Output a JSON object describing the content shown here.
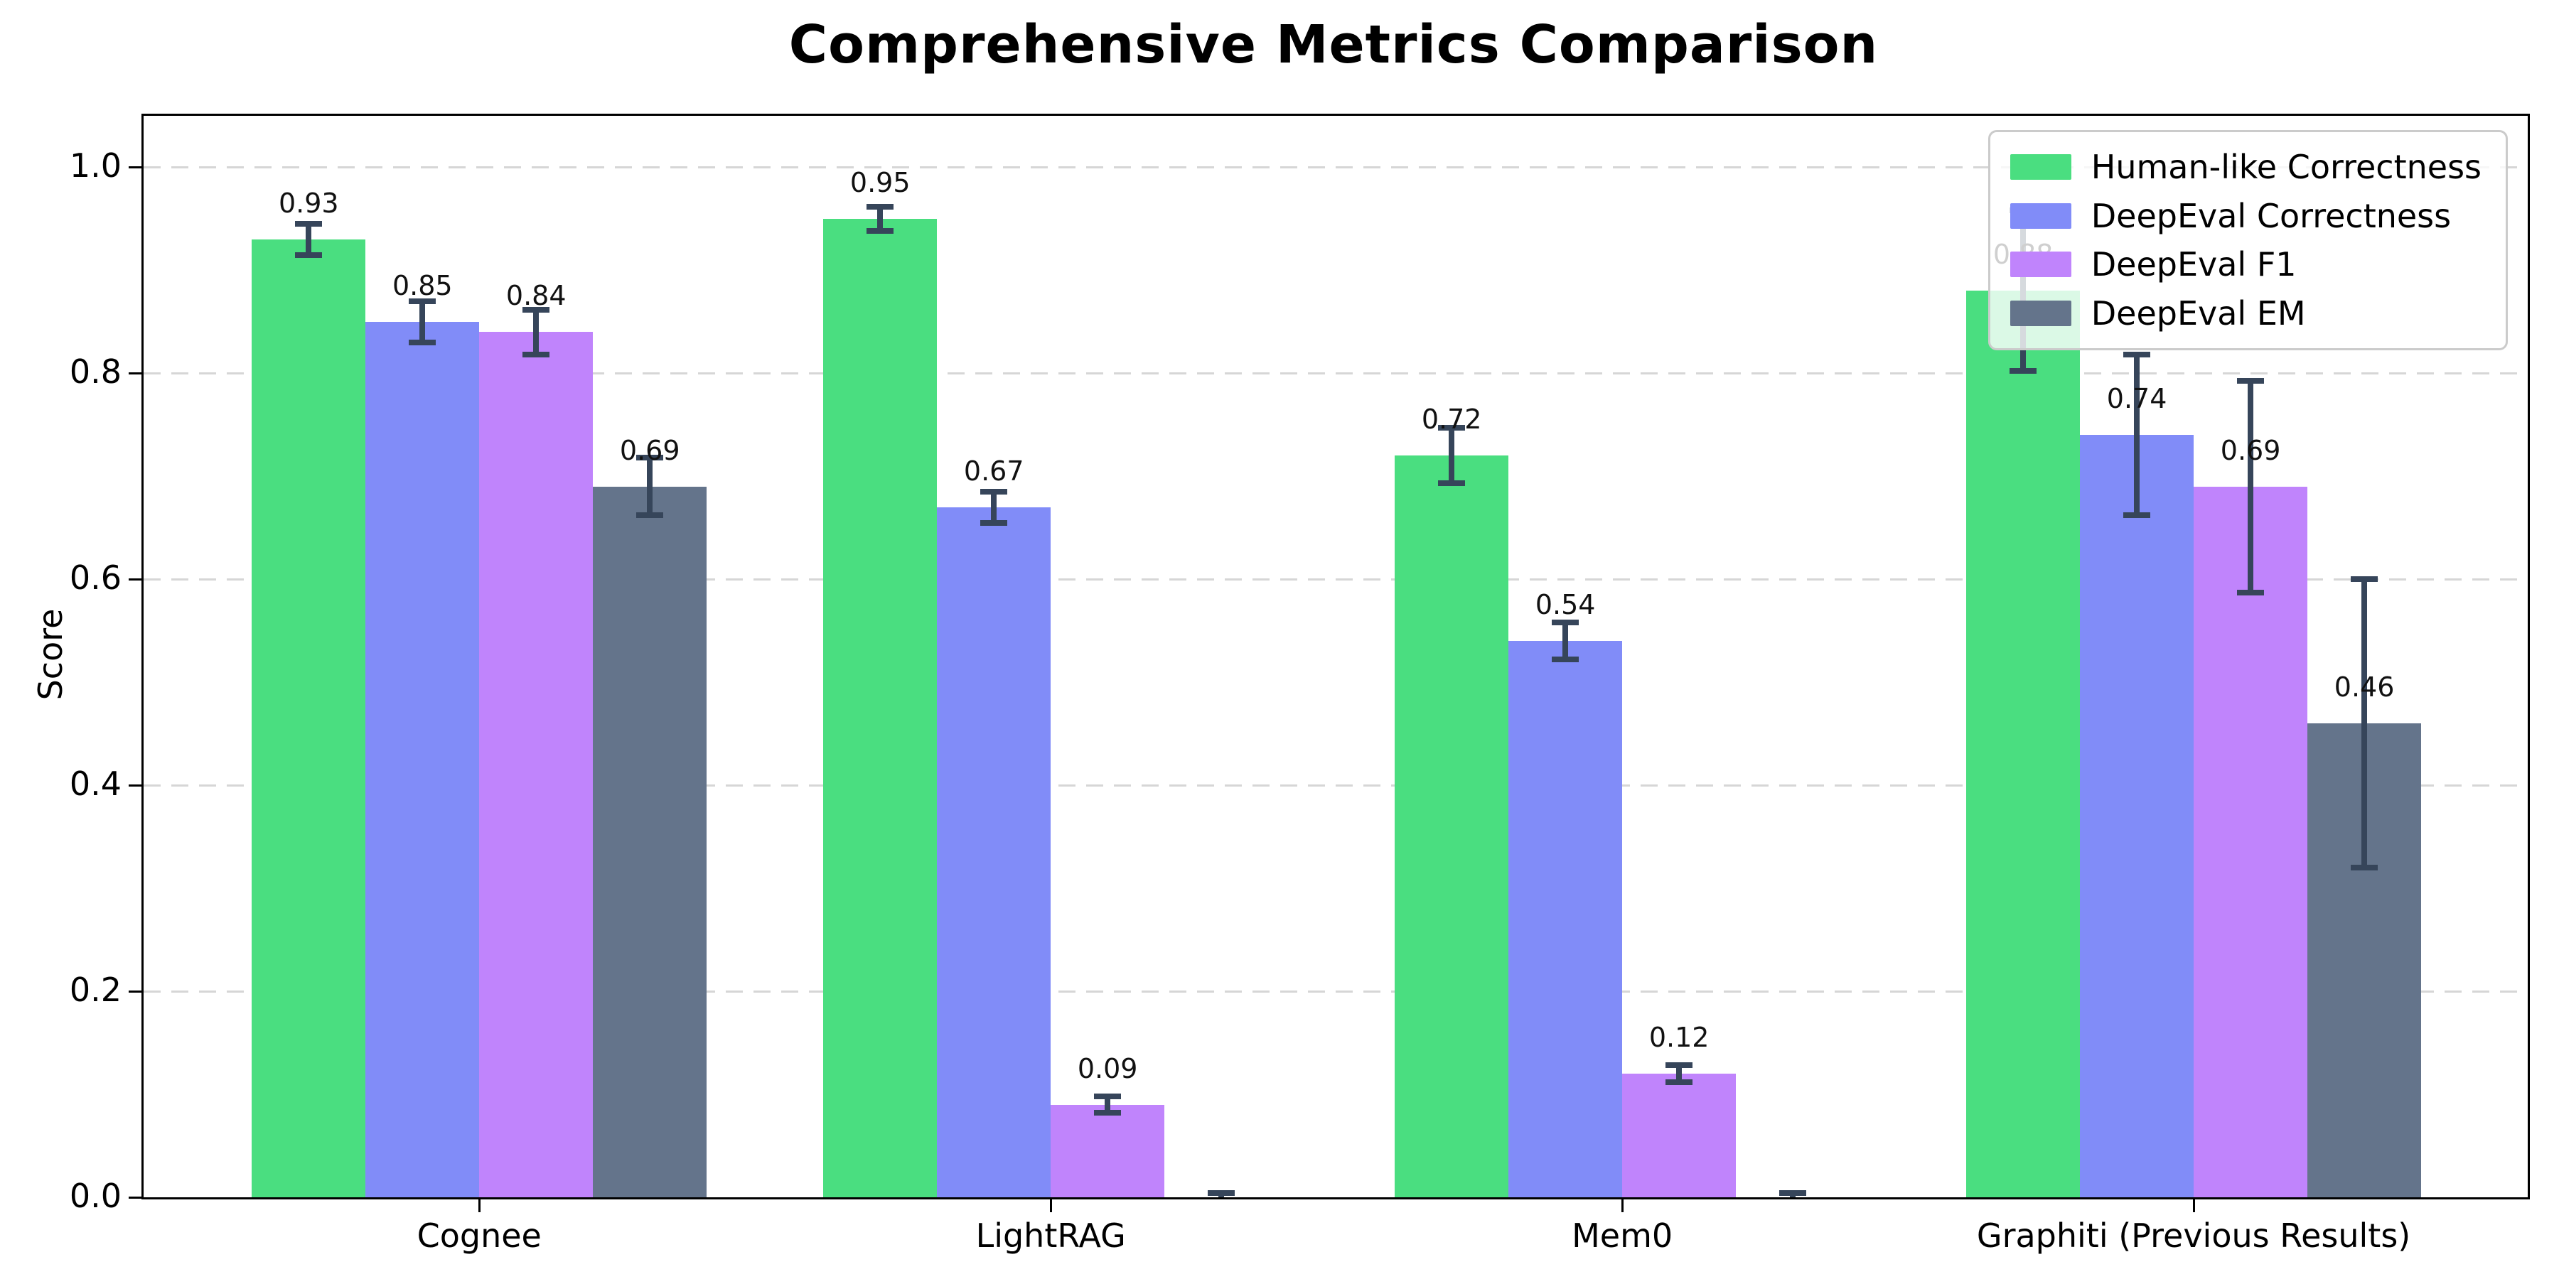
{
  "title": "Comprehensive Metrics Comparison",
  "colors": {
    "human_like_correctness": "#4ade80",
    "deepeval_correctness": "#818cf8",
    "deepeval_f1": "#c084fc",
    "deepeval_em": "#64748b",
    "error_bar": "#36455a",
    "gridline": "#d6d6d6",
    "axis": "#000000"
  },
  "chart_data": {
    "type": "bar",
    "title": "Comprehensive Metrics Comparison",
    "xlabel": "",
    "ylabel": "Score",
    "ylim": [
      0,
      1.05
    ],
    "yticks": [
      "0.0",
      "0.2",
      "0.4",
      "0.6",
      "0.8",
      "1.0"
    ],
    "grid": "horizontal dashed",
    "legend_position": "upper right",
    "categories": [
      "Cognee",
      "LightRAG",
      "Mem0",
      "Graphiti (Previous Results)"
    ],
    "series": [
      {
        "name": "Human-like Correctness",
        "color": "#4ade80",
        "values": [
          0.93,
          0.95,
          0.72,
          0.88
        ],
        "errors": [
          0.015,
          0.012,
          0.027,
          0.078
        ],
        "labels": [
          "0.93",
          "0.95",
          "0.72",
          "0.88"
        ]
      },
      {
        "name": "DeepEval Correctness",
        "color": "#818cf8",
        "values": [
          0.85,
          0.67,
          0.54,
          0.74
        ],
        "errors": [
          0.02,
          0.015,
          0.018,
          0.078
        ],
        "labels": [
          "0.85",
          "0.67",
          "0.54",
          "0.74"
        ]
      },
      {
        "name": "DeepEval F1",
        "color": "#c084fc",
        "values": [
          0.84,
          0.09,
          0.12,
          0.69
        ],
        "errors": [
          0.022,
          0.008,
          0.008,
          0.103
        ],
        "labels": [
          "0.84",
          "0.09",
          "0.12",
          "0.69"
        ]
      },
      {
        "name": "DeepEval EM",
        "color": "#64748b",
        "values": [
          0.69,
          0.0,
          0.0,
          0.46
        ],
        "errors": [
          0.028,
          0.004,
          0.004,
          0.14
        ],
        "labels": [
          "0.69",
          "",
          "",
          "0.46"
        ]
      }
    ]
  }
}
